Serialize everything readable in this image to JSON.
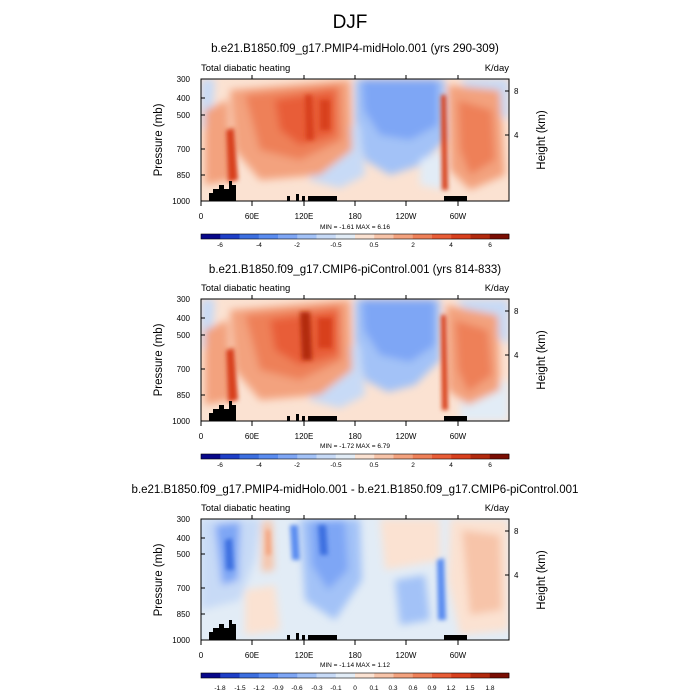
{
  "page_title": "DJF",
  "colors": {
    "cold": [
      "#08088a",
      "#1e3fc8",
      "#3c6fe0",
      "#5a8cf0",
      "#7ea6f5",
      "#a3c2f7",
      "#c7daf6",
      "#e2ecf6"
    ],
    "warm": [
      "#fbe2d2",
      "#f7c4a9",
      "#f3a27e",
      "#ee8058",
      "#e85d37",
      "#d8401e",
      "#b22a0e",
      "#7a0e04"
    ],
    "terrain": "#000000"
  },
  "chart_data": [
    {
      "type": "heatmap",
      "title": "b.e21.B1850.f09_g17.PMIP4-midHolo.001 (yrs 290-309)",
      "left_label": "Total diabatic heating",
      "right_label": "K/day",
      "ylabel": "Pressure (mb)",
      "ylabel_right": "Height (km)",
      "y_ticks": [
        "300",
        "400",
        "500",
        "700",
        "850",
        "1000"
      ],
      "y_right_ticks": [
        "8",
        "4"
      ],
      "x_ticks": [
        "0",
        "60E",
        "120E",
        "180",
        "120W",
        "60W"
      ],
      "stats": "MIN = -1.61   MAX =  6.16",
      "colorbar_labels": [
        "-6",
        "-4",
        "-2",
        "-0.5",
        "0.5",
        "2",
        "4",
        "6"
      ],
      "colorbar_levels": 16
    },
    {
      "type": "heatmap",
      "title": "b.e21.B1850.f09_g17.CMIP6-piControl.001 (yrs 814-833)",
      "left_label": "Total diabatic heating",
      "right_label": "K/day",
      "ylabel": "Pressure (mb)",
      "ylabel_right": "Height (km)",
      "y_ticks": [
        "300",
        "400",
        "500",
        "700",
        "850",
        "1000"
      ],
      "y_right_ticks": [
        "8",
        "4"
      ],
      "x_ticks": [
        "0",
        "60E",
        "120E",
        "180",
        "120W",
        "60W"
      ],
      "stats": "MIN = -1.72   MAX =  6.79",
      "colorbar_labels": [
        "-6",
        "-4",
        "-2",
        "-0.5",
        "0.5",
        "2",
        "4",
        "6"
      ],
      "colorbar_levels": 16
    },
    {
      "type": "heatmap",
      "title": "b.e21.B1850.f09_g17.PMIP4-midHolo.001 - b.e21.B1850.f09_g17.CMIP6-piControl.001",
      "left_label": "Total diabatic heating",
      "right_label": "K/day",
      "ylabel": "Pressure (mb)",
      "ylabel_right": "Height (km)",
      "y_ticks": [
        "300",
        "400",
        "500",
        "700",
        "850",
        "1000"
      ],
      "y_right_ticks": [
        "8",
        "4"
      ],
      "x_ticks": [
        "0",
        "60E",
        "120E",
        "180",
        "120W",
        "60W"
      ],
      "stats": "MIN = -1.14   MAX =  1.12",
      "colorbar_labels": [
        "-1.8",
        "-1.5",
        "-1.2",
        "-0.9",
        "-0.6",
        "-0.3",
        "-0.1",
        "0",
        "0.1",
        "0.3",
        "0.6",
        "0.9",
        "1.2",
        "1.5",
        "1.8"
      ],
      "colorbar_levels": 16
    }
  ]
}
